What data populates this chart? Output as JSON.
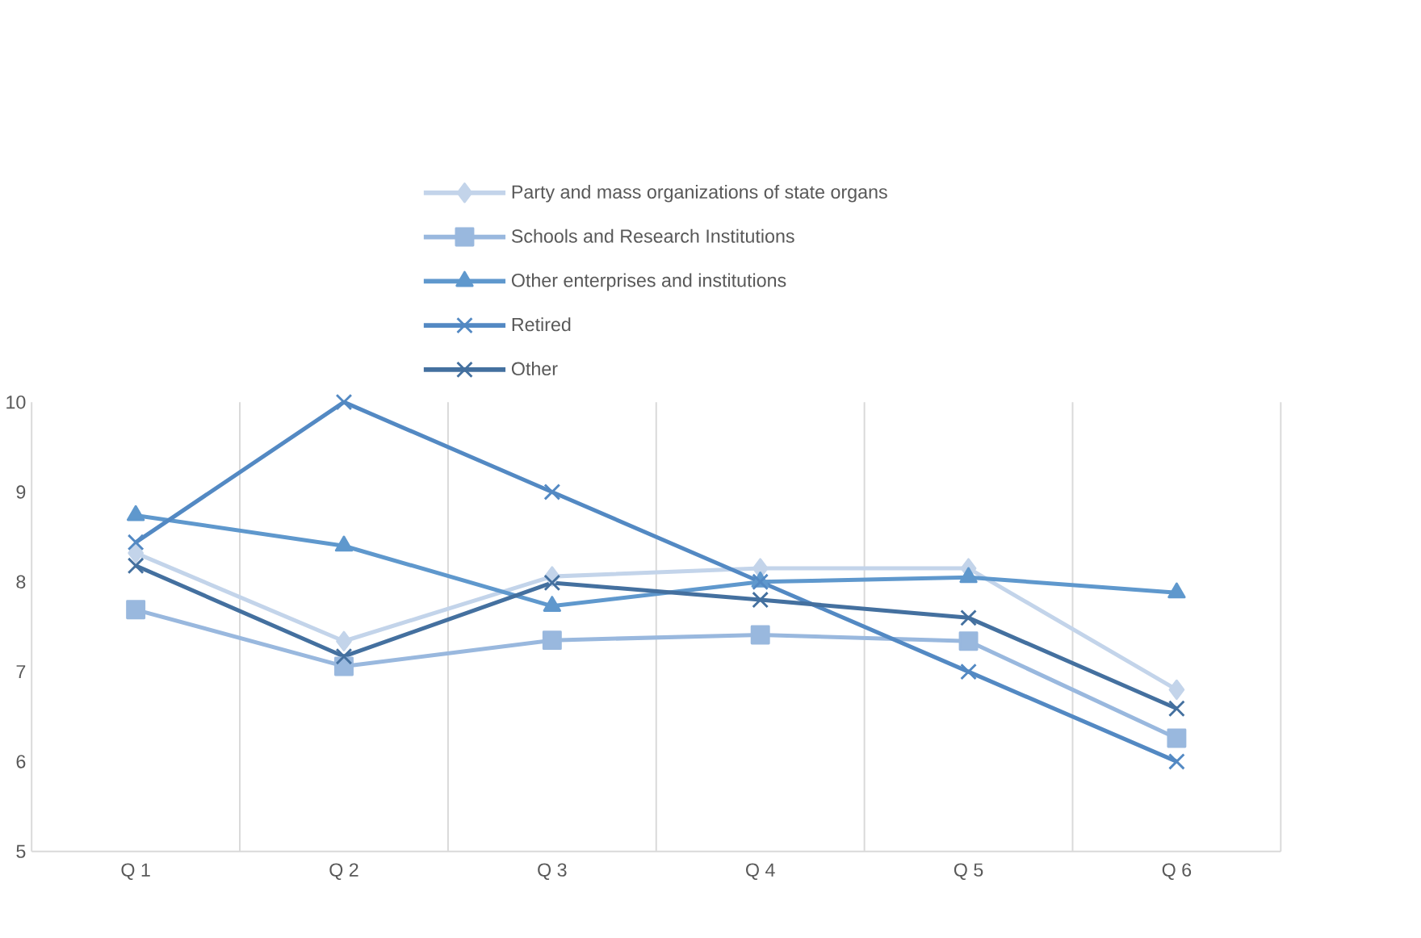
{
  "chart_data": {
    "type": "line",
    "categories": [
      "Q 1",
      "Q 2",
      "Q 3",
      "Q 4",
      "Q 5",
      "Q 6"
    ],
    "series": [
      {
        "name": "Party and mass organizations of state organs",
        "color": "#c3d4ea",
        "marker": "diamond",
        "values": [
          8.32,
          7.34,
          8.06,
          8.15,
          8.15,
          6.8
        ]
      },
      {
        "name": "Schools and Research Institutions",
        "color": "#99b8de",
        "marker": "square",
        "values": [
          7.69,
          7.06,
          7.35,
          7.41,
          7.34,
          6.26
        ]
      },
      {
        "name": "Other enterprises and institutions",
        "color": "#5f98cd",
        "marker": "triangle",
        "values": [
          8.74,
          8.4,
          7.73,
          8.0,
          8.05,
          7.88
        ]
      },
      {
        "name": "Retired",
        "color": "#5389c3",
        "marker": "cross",
        "values": [
          8.44,
          10,
          9.0,
          8.0,
          7.0,
          6.0
        ]
      },
      {
        "name": "Other",
        "color": "#44709f",
        "marker": "cross",
        "values": [
          8.18,
          7.17,
          7.99,
          7.8,
          7.6,
          6.59
        ]
      }
    ],
    "ylim": [
      5,
      10
    ],
    "yticks": [
      5,
      6,
      7,
      8,
      9,
      10
    ],
    "grid": "x",
    "legend": "top",
    "line_style": "solid"
  }
}
